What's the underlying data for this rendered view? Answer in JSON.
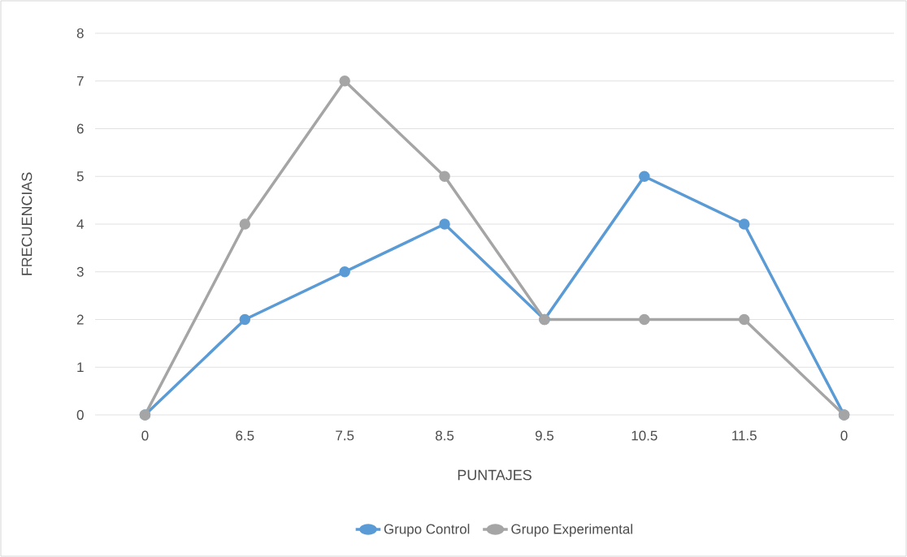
{
  "chart_data": {
    "type": "line",
    "xlabel": "PUNTAJES",
    "ylabel": "FRECUENCIAS",
    "categories": [
      "0",
      "6.5",
      "7.5",
      "8.5",
      "9.5",
      "10.5",
      "11.5",
      "0"
    ],
    "series": [
      {
        "name": "Grupo Control",
        "color": "#5b9bd5",
        "values": [
          0,
          2,
          3,
          4,
          2,
          5,
          4,
          0
        ]
      },
      {
        "name": "Grupo Experimental",
        "color": "#a5a5a5",
        "values": [
          0,
          4,
          7,
          5,
          2,
          2,
          2,
          0
        ]
      }
    ],
    "ylim": [
      0,
      8
    ],
    "yticks": [
      0,
      1,
      2,
      3,
      4,
      5,
      6,
      7,
      8
    ],
    "grid": "y",
    "legend": "bottom",
    "marker": "circle",
    "line_style": "solid"
  }
}
